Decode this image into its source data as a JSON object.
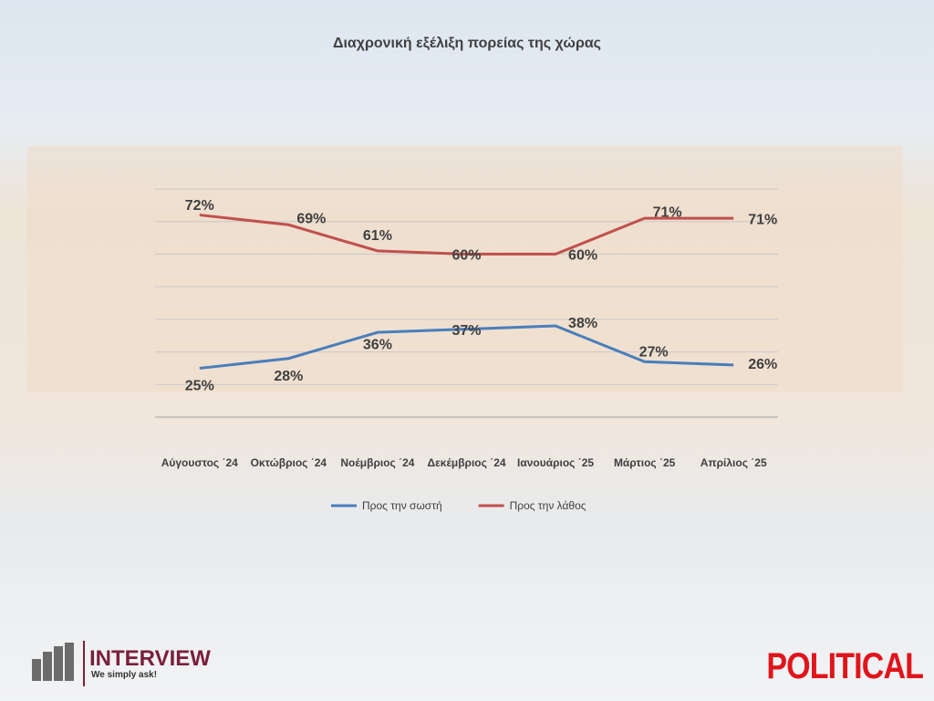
{
  "chart_data": {
    "type": "line",
    "title": "Διαχρονική εξέλιξη πορείας της χώρας",
    "categories": [
      "Αύγουστος ΄24",
      "Οκτώβριος ΄24",
      "Νοέμβριος ΄24",
      "Δεκέμβριος ΄24",
      "Ιανουάριος ΄25",
      "Μάρτιος ΄25",
      "Απρίλιος ΄25"
    ],
    "series": [
      {
        "name": "Προς την σωστή",
        "color": "#4a7ebb",
        "values": [
          25,
          28,
          36,
          37,
          38,
          27,
          26
        ],
        "value_labels": [
          "25%",
          "28%",
          "36%",
          "37%",
          "38%",
          "27%",
          "26%"
        ]
      },
      {
        "name": "Προς την λάθος",
        "color": "#c0504d",
        "values": [
          72,
          69,
          61,
          60,
          60,
          71,
          71
        ],
        "value_labels": [
          "72%",
          "69%",
          "61%",
          "60%",
          "60%",
          "71%",
          "71%"
        ]
      }
    ],
    "ylim": [
      10,
      80
    ],
    "yticks": [
      10,
      20,
      30,
      40,
      50,
      60,
      70,
      80
    ],
    "ytick_labels": false,
    "grid": true,
    "legend": "bottom"
  },
  "logos": {
    "brand": "INTERVIEW",
    "tagline": "We simply ask!",
    "partner": "POLITICAL"
  }
}
